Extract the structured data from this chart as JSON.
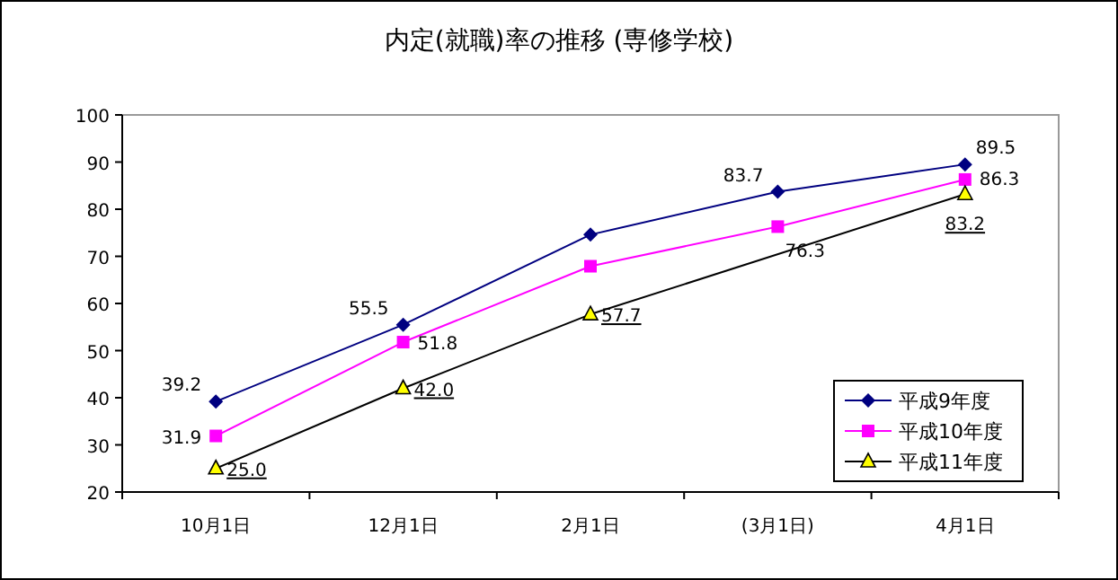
{
  "chart_data": {
    "type": "line",
    "title": "内定(就職)率の推移 (専修学校)",
    "categories": [
      "10月1日",
      "12月1日",
      "2月1日",
      "(3月1日)",
      "4月1日"
    ],
    "ylim": [
      20,
      100
    ],
    "yticks": [
      20,
      30,
      40,
      50,
      60,
      70,
      80,
      90,
      100
    ],
    "grid": false,
    "legend": "bottom right",
    "line_style": "solid",
    "series": [
      {
        "name": "平成9年度",
        "color": "#000080",
        "marker": "diamond",
        "values": [
          39.2,
          55.5,
          74.6,
          83.7,
          89.5
        ],
        "value_labels": [
          "39.2",
          "55.5",
          null,
          "83.7",
          "89.5"
        ]
      },
      {
        "name": "平成10年度",
        "color": "#ff00ff",
        "marker": "square",
        "values": [
          31.9,
          51.8,
          67.9,
          76.3,
          86.3
        ],
        "value_labels": [
          "31.9",
          "51.8",
          null,
          "76.3",
          "86.3"
        ]
      },
      {
        "name": "平成11年度",
        "color": "#000000",
        "marker": "triangle",
        "values": [
          25.0,
          42.0,
          57.7,
          null,
          83.2
        ],
        "value_labels": [
          "25.0",
          "42.0",
          "57.7",
          null,
          "83.2"
        ]
      }
    ]
  }
}
